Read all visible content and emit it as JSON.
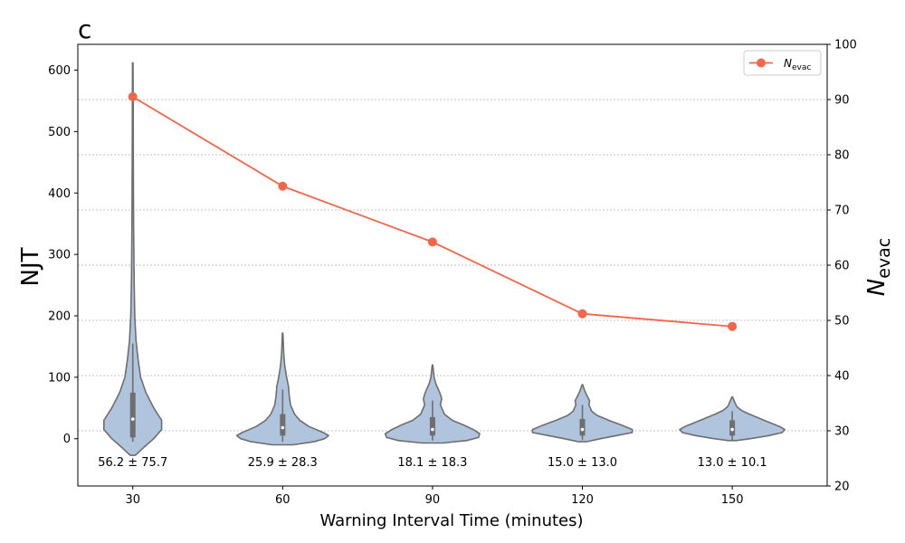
{
  "chart_data": {
    "type": "violin",
    "panel_label": "c",
    "xlabel": "Warning Interval Time (minutes)",
    "ylabel_left": "NJT",
    "ylabel_right_main": "N",
    "ylabel_right_sub": "evac",
    "categories": [
      "30",
      "60",
      "90",
      "120",
      "150"
    ],
    "x": [
      30,
      60,
      90,
      120,
      150
    ],
    "xlim": [
      19,
      169
    ],
    "ylim_left": [
      -77,
      642
    ],
    "ylim_right": [
      20,
      100
    ],
    "yticks_left": [
      0,
      100,
      200,
      300,
      400,
      500,
      600
    ],
    "yticks_right": [
      20,
      30,
      40,
      50,
      60,
      70,
      80,
      90,
      100
    ],
    "grid": "horizontal dashed, right axis",
    "colors": {
      "violin_fill": "#b0c4de",
      "violin_edge": "#6e6e6e",
      "line": "#f4664a",
      "grid": "#b0b0b0"
    },
    "annotations": [
      "56.2 ± 75.7",
      "25.9 ± 28.3",
      "18.1 ± 18.3",
      "15.0 ± 13.0",
      "13.0 ± 10.1"
    ],
    "violins": [
      {
        "x": 30,
        "min": -27,
        "max": 612,
        "q1": 2,
        "median": 32,
        "q3": 75,
        "whisker_low": -5,
        "whisker_high": 155,
        "mean": 56.2,
        "std": 75.7,
        "density": [
          [
            -27,
            0.02
          ],
          [
            -15,
            0.08
          ],
          [
            0,
            0.16
          ],
          [
            15,
            0.22
          ],
          [
            30,
            0.22
          ],
          [
            50,
            0.16
          ],
          [
            75,
            0.1
          ],
          [
            100,
            0.06
          ],
          [
            130,
            0.04
          ],
          [
            160,
            0.025
          ],
          [
            200,
            0.015
          ],
          [
            260,
            0.01
          ],
          [
            350,
            0.006
          ],
          [
            450,
            0.004
          ],
          [
            550,
            0.003
          ],
          [
            612,
            0.002
          ]
        ]
      },
      {
        "x": 60,
        "min": -10,
        "max": 172,
        "q1": 5,
        "median": 18,
        "q3": 40,
        "whisker_low": -5,
        "whisker_high": 80,
        "mean": 25.9,
        "std": 28.3,
        "density": [
          [
            -10,
            0.08
          ],
          [
            -5,
            0.24
          ],
          [
            0,
            0.32
          ],
          [
            5,
            0.35
          ],
          [
            10,
            0.31
          ],
          [
            20,
            0.2
          ],
          [
            30,
            0.13
          ],
          [
            40,
            0.09
          ],
          [
            55,
            0.06
          ],
          [
            70,
            0.05
          ],
          [
            85,
            0.045
          ],
          [
            100,
            0.03
          ],
          [
            120,
            0.015
          ],
          [
            140,
            0.008
          ],
          [
            172,
            0.002
          ]
        ]
      },
      {
        "x": 90,
        "min": -7,
        "max": 120,
        "q1": 5,
        "median": 15,
        "q3": 35,
        "whisker_low": -3,
        "whisker_high": 62,
        "mean": 18.1,
        "std": 18.3,
        "density": [
          [
            -7,
            0.08
          ],
          [
            -3,
            0.26
          ],
          [
            2,
            0.35
          ],
          [
            8,
            0.36
          ],
          [
            15,
            0.31
          ],
          [
            22,
            0.24
          ],
          [
            30,
            0.15
          ],
          [
            40,
            0.09
          ],
          [
            55,
            0.06
          ],
          [
            65,
            0.07
          ],
          [
            75,
            0.055
          ],
          [
            90,
            0.025
          ],
          [
            100,
            0.012
          ],
          [
            120,
            0.002
          ]
        ]
      },
      {
        "x": 120,
        "min": -5,
        "max": 88,
        "q1": 5,
        "median": 15,
        "q3": 32,
        "whisker_low": -2,
        "whisker_high": 55,
        "mean": 15.0,
        "std": 13.0,
        "density": [
          [
            -5,
            0.03
          ],
          [
            0,
            0.14
          ],
          [
            5,
            0.26
          ],
          [
            10,
            0.38
          ],
          [
            15,
            0.38
          ],
          [
            22,
            0.3
          ],
          [
            30,
            0.2
          ],
          [
            38,
            0.11
          ],
          [
            45,
            0.07
          ],
          [
            55,
            0.05
          ],
          [
            62,
            0.055
          ],
          [
            68,
            0.04
          ],
          [
            78,
            0.018
          ],
          [
            88,
            0.002
          ]
        ]
      },
      {
        "x": 150,
        "min": -3,
        "max": 68,
        "q1": 5,
        "median": 15,
        "q3": 30,
        "whisker_low": -2,
        "whisker_high": 45,
        "mean": 13.0,
        "std": 10.1,
        "density": [
          [
            -3,
            0.03
          ],
          [
            0,
            0.14
          ],
          [
            5,
            0.28
          ],
          [
            10,
            0.38
          ],
          [
            15,
            0.4
          ],
          [
            20,
            0.36
          ],
          [
            25,
            0.3
          ],
          [
            32,
            0.22
          ],
          [
            40,
            0.13
          ],
          [
            46,
            0.07
          ],
          [
            52,
            0.035
          ],
          [
            60,
            0.018
          ],
          [
            68,
            0.002
          ]
        ]
      }
    ],
    "series": [
      {
        "name": "N_evac",
        "legend_main": "N",
        "legend_sub": "evac",
        "axis": "right",
        "values": [
          90.5,
          74.3,
          64.2,
          51.2,
          48.9
        ]
      }
    ]
  }
}
